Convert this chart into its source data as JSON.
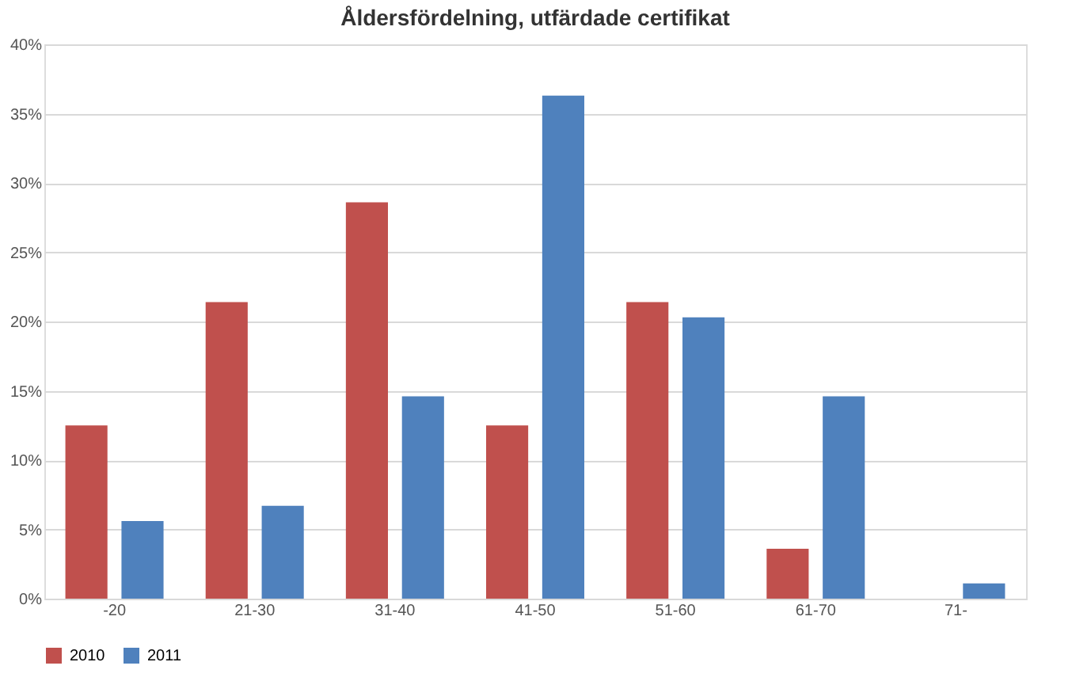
{
  "chart_data": {
    "type": "bar",
    "title": "Åldersfördelning, utfärdade certifikat",
    "categories": [
      "-20",
      "21-30",
      "31-40",
      "41-50",
      "51-60",
      "61-70",
      "71-"
    ],
    "series": [
      {
        "name": "2010",
        "color": "#c0504d",
        "values": [
          12.5,
          21.4,
          28.6,
          12.5,
          21.4,
          3.6,
          0
        ]
      },
      {
        "name": "2011",
        "color": "#4f81bd",
        "values": [
          5.6,
          6.7,
          14.6,
          36.3,
          20.3,
          14.6,
          1.1
        ]
      }
    ],
    "ylim": [
      0,
      40
    ],
    "yticks": [
      {
        "value": 0,
        "label": "0%"
      },
      {
        "value": 5,
        "label": "5%"
      },
      {
        "value": 10,
        "label": "10%"
      },
      {
        "value": 15,
        "label": "15%"
      },
      {
        "value": 20,
        "label": "20%"
      },
      {
        "value": 25,
        "label": "25%"
      },
      {
        "value": 30,
        "label": "30%"
      },
      {
        "value": 35,
        "label": "35%"
      },
      {
        "value": 40,
        "label": "40%"
      }
    ],
    "grid": "y",
    "legend": "bottom"
  }
}
